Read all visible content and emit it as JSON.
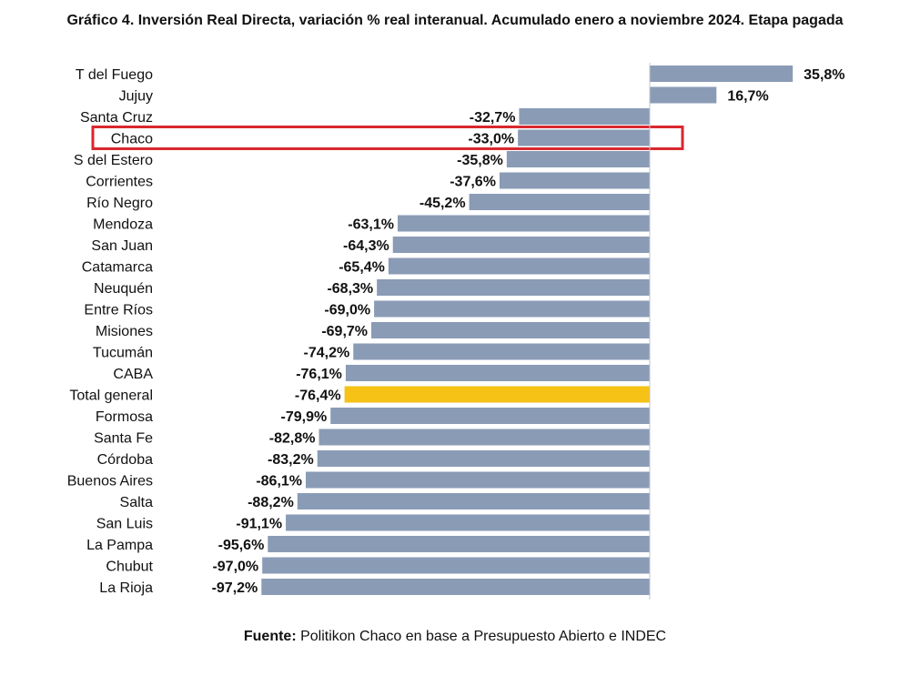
{
  "chart_data": {
    "type": "bar",
    "orientation": "horizontal",
    "title": "Gráfico 4. Inversión Real Directa, variación % real interanual. Acumulado enero a noviembre 2024. Etapa pagada",
    "categories": [
      "T del Fuego",
      "Jujuy",
      "Santa Cruz",
      "Chaco",
      "S del Estero",
      "Corrientes",
      "Río Negro",
      "Mendoza",
      "San Juan",
      "Catamarca",
      "Neuquén",
      "Entre Ríos",
      "Misiones",
      "Tucumán",
      "CABA",
      "Total general",
      "Formosa",
      "Santa Fe",
      "Córdoba",
      "Buenos Aires",
      "Salta",
      "San Luis",
      "La Pampa",
      "Chubut",
      "La Rioja"
    ],
    "values": [
      35.8,
      16.7,
      -32.7,
      -33.0,
      -35.8,
      -37.6,
      -45.2,
      -63.1,
      -64.3,
      -65.4,
      -68.3,
      -69.0,
      -69.7,
      -74.2,
      -76.1,
      -76.4,
      -79.9,
      -82.8,
      -83.2,
      -86.1,
      -88.2,
      -91.1,
      -95.6,
      -97.0,
      -97.2
    ],
    "value_labels": [
      "35,8%",
      "16,7%",
      "-32,7%",
      "-33,0%",
      "-35,8%",
      "-37,6%",
      "-45,2%",
      "-63,1%",
      "-64,3%",
      "-65,4%",
      "-68,3%",
      "-69,0%",
      "-69,7%",
      "-74,2%",
      "-76,1%",
      "-76,4%",
      "-79,9%",
      "-82,8%",
      "-83,2%",
      "-86,1%",
      "-88,2%",
      "-91,1%",
      "-95,6%",
      "-97,0%",
      "-97,2%"
    ],
    "highlight_category": "Total general",
    "outlined_category": "Chaco",
    "colors": {
      "bar": "#8a9bb5",
      "highlight": "#f5c215",
      "outline": "#d9272e",
      "axis": "#c0c6d0"
    },
    "grid": false,
    "legend": "none"
  },
  "source": {
    "label": "Fuente:",
    "text": " Politikon Chaco en base a Presupuesto Abierto e INDEC"
  }
}
